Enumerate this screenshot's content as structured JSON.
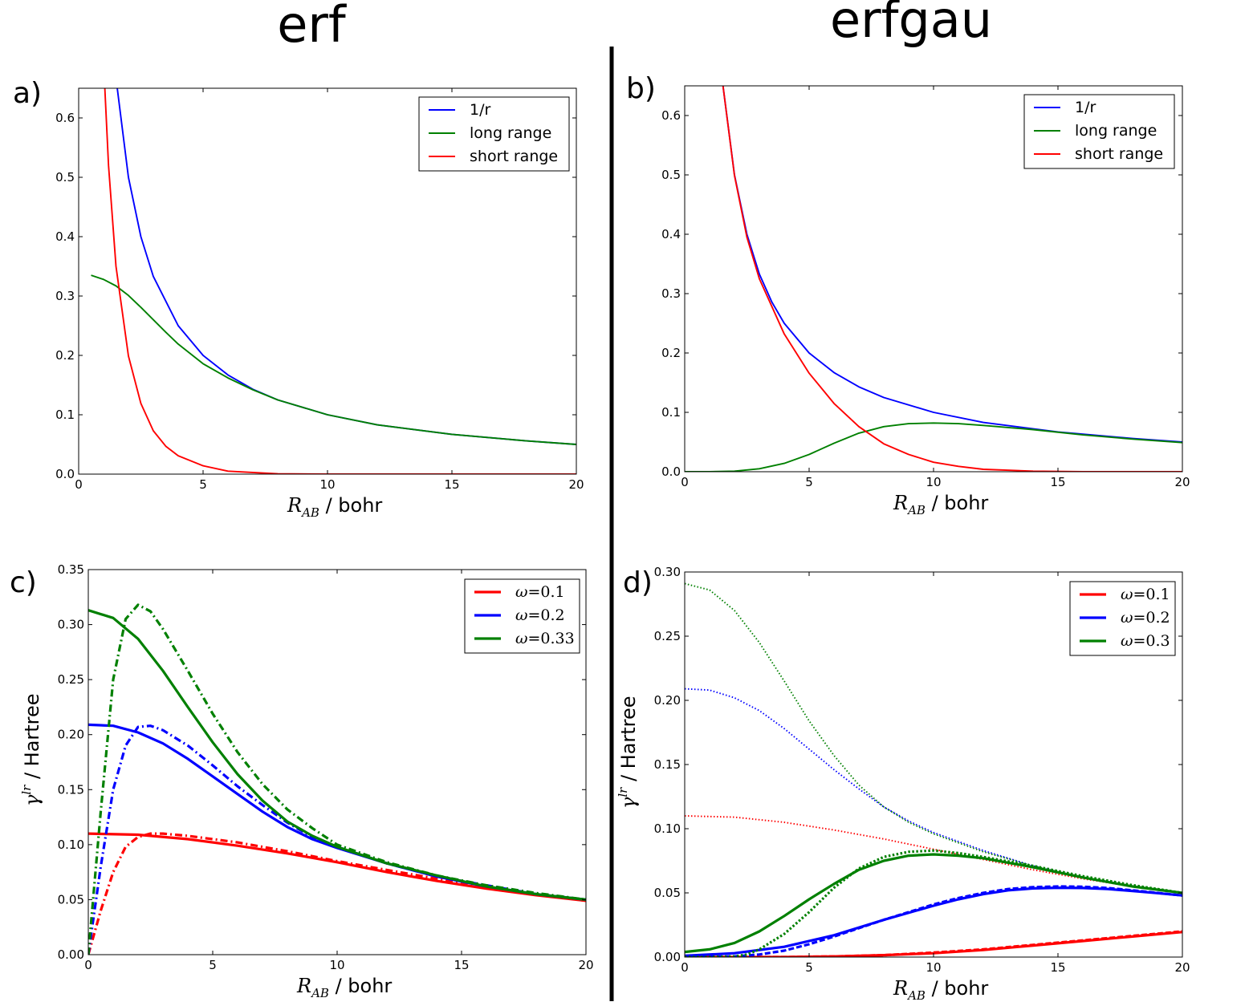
{
  "column_titles": {
    "left": "erf",
    "right": "erfgau"
  },
  "chart_data": [
    {
      "id": "a",
      "panel_label": "a)",
      "type": "line",
      "xlabel": {
        "var": "R",
        "sub": "AB",
        "rest": " / bohr"
      },
      "ylabel": null,
      "xlim": [
        0,
        20
      ],
      "ylim": [
        0,
        0.65
      ],
      "xticks": [
        0,
        5,
        10,
        15,
        20
      ],
      "yticks": [
        0.0,
        0.1,
        0.2,
        0.3,
        0.4,
        0.5,
        0.6
      ],
      "legend": {
        "position": "top-right",
        "style": "text"
      },
      "series": [
        {
          "name": "1/r",
          "color": "#0000ff",
          "dash": "solid",
          "width": "thin",
          "x": [
            1.5,
            2,
            2.5,
            3,
            4,
            5,
            6,
            7,
            8,
            10,
            12,
            15,
            18,
            20
          ],
          "y": [
            0.667,
            0.5,
            0.4,
            0.333,
            0.25,
            0.2,
            0.167,
            0.143,
            0.125,
            0.1,
            0.083,
            0.067,
            0.056,
            0.05
          ]
        },
        {
          "name": "long range",
          "color": "#008000",
          "dash": "solid",
          "width": "thin",
          "x": [
            0.5,
            1,
            1.5,
            2,
            2.5,
            3,
            3.5,
            4,
            5,
            6,
            7,
            8,
            10,
            12,
            15,
            18,
            20
          ],
          "y": [
            0.335,
            0.328,
            0.317,
            0.301,
            0.281,
            0.26,
            0.239,
            0.219,
            0.186,
            0.162,
            0.142,
            0.125,
            0.1,
            0.083,
            0.067,
            0.056,
            0.05
          ]
        },
        {
          "name": "short range",
          "color": "#ff0000",
          "dash": "solid",
          "width": "thin",
          "x": [
            1.05,
            1.2,
            1.5,
            2,
            2.5,
            3,
            3.5,
            4,
            5,
            6,
            8,
            10,
            15,
            20
          ],
          "y": [
            0.65,
            0.52,
            0.35,
            0.199,
            0.119,
            0.073,
            0.047,
            0.031,
            0.014,
            0.005,
            0.0005,
            0.0,
            0.0,
            0.0
          ]
        }
      ]
    },
    {
      "id": "b",
      "panel_label": "b)",
      "type": "line",
      "xlabel": {
        "var": "R",
        "sub": "AB",
        "rest": " / bohr"
      },
      "ylabel": null,
      "xlim": [
        0,
        20
      ],
      "ylim": [
        0,
        0.65
      ],
      "xticks": [
        0,
        5,
        10,
        15,
        20
      ],
      "yticks": [
        0.0,
        0.1,
        0.2,
        0.3,
        0.4,
        0.5,
        0.6
      ],
      "legend": {
        "position": "top-right",
        "style": "text"
      },
      "series": [
        {
          "name": "1/r",
          "color": "#0000ff",
          "dash": "solid",
          "width": "thin",
          "x": [
            1.54,
            2,
            2.5,
            3,
            3.5,
            4,
            5,
            6,
            7,
            8,
            10,
            12,
            15,
            18,
            20
          ],
          "y": [
            0.65,
            0.5,
            0.4,
            0.333,
            0.286,
            0.25,
            0.2,
            0.167,
            0.143,
            0.125,
            0.1,
            0.083,
            0.067,
            0.056,
            0.05
          ]
        },
        {
          "name": "long range",
          "color": "#008000",
          "dash": "solid",
          "width": "thin",
          "x": [
            0,
            1,
            2,
            3,
            4,
            5,
            6,
            7,
            8,
            9,
            10,
            11,
            12,
            14,
            16,
            18,
            20
          ],
          "y": [
            0.0,
            0.0,
            0.001,
            0.005,
            0.014,
            0.029,
            0.048,
            0.065,
            0.076,
            0.081,
            0.082,
            0.081,
            0.078,
            0.071,
            0.062,
            0.055,
            0.049
          ]
        },
        {
          "name": "short range",
          "color": "#ff0000",
          "dash": "solid",
          "width": "thin",
          "x": [
            1.54,
            2,
            2.5,
            3,
            4,
            5,
            6,
            7,
            8,
            9,
            10,
            11,
            12,
            14,
            16,
            18,
            20
          ],
          "y": [
            0.65,
            0.499,
            0.395,
            0.325,
            0.232,
            0.166,
            0.115,
            0.076,
            0.047,
            0.029,
            0.016,
            0.009,
            0.004,
            0.001,
            0.0,
            0.0,
            0.0
          ]
        }
      ]
    },
    {
      "id": "c",
      "panel_label": "c)",
      "type": "line",
      "xlabel": {
        "var": "R",
        "sub": "AB",
        "rest": " / bohr"
      },
      "ylabel": {
        "var": "γ",
        "sup": "lr",
        "rest": " / Hartree"
      },
      "xlim": [
        0,
        20
      ],
      "ylim": [
        0,
        0.35
      ],
      "xticks": [
        0,
        5,
        10,
        15,
        20
      ],
      "yticks": [
        0.0,
        0.05,
        0.1,
        0.15,
        0.2,
        0.25,
        0.3,
        0.35
      ],
      "legend": {
        "position": "top-right",
        "style": "omega"
      },
      "series": [
        {
          "name": "ω=0.1",
          "legend": {
            "sym": "ω",
            "val": "=0.1"
          },
          "color": "#ff0000",
          "dash": "solid",
          "width": "thick",
          "x": [
            0,
            2,
            4,
            6,
            8,
            10,
            12,
            14,
            16,
            18,
            20
          ],
          "y": [
            0.11,
            0.109,
            0.105,
            0.099,
            0.092,
            0.084,
            0.075,
            0.067,
            0.06,
            0.054,
            0.049
          ]
        },
        {
          "name": null,
          "color": "#ff0000",
          "dash": "dashdot",
          "width": "thick",
          "x": [
            0,
            0.5,
            1,
            1.5,
            2,
            2.5,
            3,
            4,
            6,
            8,
            10,
            12,
            14,
            16,
            18,
            20
          ],
          "y": [
            0.0,
            0.04,
            0.075,
            0.098,
            0.107,
            0.11,
            0.11,
            0.108,
            0.102,
            0.094,
            0.085,
            0.077,
            0.069,
            0.061,
            0.055,
            0.049
          ]
        },
        {
          "name": "ω=0.2",
          "legend": {
            "sym": "ω",
            "val": "=0.2"
          },
          "color": "#0000ff",
          "dash": "solid",
          "width": "thick",
          "x": [
            0,
            1,
            2,
            3,
            4,
            5,
            6,
            7,
            8,
            9,
            10,
            12,
            14,
            16,
            18,
            20
          ],
          "y": [
            0.209,
            0.208,
            0.202,
            0.192,
            0.178,
            0.162,
            0.146,
            0.13,
            0.116,
            0.105,
            0.097,
            0.083,
            0.071,
            0.062,
            0.055,
            0.05
          ]
        },
        {
          "name": null,
          "color": "#0000ff",
          "dash": "dashdot",
          "width": "thick",
          "x": [
            0,
            0.5,
            1,
            1.5,
            2,
            2.5,
            3,
            4,
            5,
            6,
            7,
            8,
            9,
            10,
            12,
            14,
            16,
            18,
            20
          ],
          "y": [
            0.0,
            0.08,
            0.15,
            0.19,
            0.207,
            0.208,
            0.204,
            0.19,
            0.172,
            0.153,
            0.136,
            0.12,
            0.107,
            0.098,
            0.083,
            0.071,
            0.063,
            0.055,
            0.05
          ]
        },
        {
          "name": "ω=0.33",
          "legend": {
            "sym": "ω",
            "val": "=0.33"
          },
          "color": "#008000",
          "dash": "solid",
          "width": "thick",
          "x": [
            0,
            1,
            2,
            3,
            4,
            5,
            6,
            7,
            8,
            9,
            10,
            12,
            14,
            16,
            18,
            20
          ],
          "y": [
            0.313,
            0.306,
            0.287,
            0.258,
            0.225,
            0.193,
            0.164,
            0.14,
            0.121,
            0.108,
            0.098,
            0.083,
            0.072,
            0.062,
            0.055,
            0.05
          ]
        },
        {
          "name": null,
          "color": "#008000",
          "dash": "dashdot",
          "width": "thick",
          "x": [
            0,
            0.5,
            1,
            1.5,
            2,
            2.5,
            3,
            4,
            5,
            6,
            7,
            8,
            9,
            10,
            12,
            14,
            16,
            18,
            20
          ],
          "y": [
            0.0,
            0.13,
            0.25,
            0.305,
            0.318,
            0.312,
            0.296,
            0.258,
            0.219,
            0.184,
            0.155,
            0.132,
            0.115,
            0.1,
            0.084,
            0.072,
            0.063,
            0.056,
            0.05
          ]
        }
      ]
    },
    {
      "id": "d",
      "panel_label": "d)",
      "type": "line",
      "xlabel": {
        "var": "R",
        "sub": "AB",
        "rest": " / bohr"
      },
      "ylabel": {
        "var": "γ",
        "sup": "lr",
        "rest": " / Hartree"
      },
      "xlim": [
        0,
        20
      ],
      "ylim": [
        0,
        0.3
      ],
      "xticks": [
        0,
        5,
        10,
        15,
        20
      ],
      "yticks": [
        0.0,
        0.05,
        0.1,
        0.15,
        0.2,
        0.25,
        0.3
      ],
      "legend": {
        "position": "top-right",
        "style": "omega"
      },
      "series": [
        {
          "name": null,
          "color": "#ff0000",
          "dash": "dotted",
          "width": "thin",
          "x": [
            0,
            2,
            4,
            6,
            8,
            10,
            12,
            14,
            16,
            18,
            20
          ],
          "y": [
            0.11,
            0.109,
            0.105,
            0.099,
            0.092,
            0.084,
            0.076,
            0.068,
            0.061,
            0.055,
            0.05
          ]
        },
        {
          "name": null,
          "color": "#0000ff",
          "dash": "dotted",
          "width": "thin",
          "x": [
            0,
            1,
            2,
            3,
            4,
            5,
            6,
            7,
            8,
            9,
            10,
            12,
            14,
            16,
            18,
            20
          ],
          "y": [
            0.209,
            0.208,
            0.202,
            0.192,
            0.178,
            0.162,
            0.146,
            0.131,
            0.117,
            0.106,
            0.097,
            0.083,
            0.071,
            0.062,
            0.055,
            0.05
          ]
        },
        {
          "name": null,
          "color": "#008000",
          "dash": "dotted",
          "width": "thin",
          "x": [
            0,
            1,
            2,
            3,
            4,
            5,
            6,
            7,
            8,
            9,
            10,
            12,
            14,
            16,
            18,
            20
          ],
          "y": [
            0.291,
            0.286,
            0.27,
            0.245,
            0.215,
            0.184,
            0.157,
            0.134,
            0.117,
            0.105,
            0.096,
            0.082,
            0.071,
            0.062,
            0.055,
            0.05
          ]
        },
        {
          "name": "ω=0.1",
          "legend": {
            "sym": "ω",
            "val": "=0.1"
          },
          "color": "#ff0000",
          "dash": "solid",
          "width": "thick",
          "x": [
            0,
            2,
            4,
            6,
            8,
            10,
            12,
            14,
            16,
            18,
            20
          ],
          "y": [
            0.0,
            0.0,
            0.0,
            0.0005,
            0.0015,
            0.003,
            0.0055,
            0.009,
            0.0125,
            0.016,
            0.0195
          ]
        },
        {
          "name": null,
          "color": "#ff0000",
          "dash": "dashed",
          "width": "thick",
          "x": [
            0,
            2,
            4,
            6,
            8,
            10,
            12,
            14,
            16,
            18,
            20
          ],
          "y": [
            0.0,
            0.0,
            0.0,
            0.0005,
            0.0015,
            0.0035,
            0.006,
            0.0095,
            0.013,
            0.0165,
            0.02
          ]
        },
        {
          "name": "ω=0.2",
          "legend": {
            "sym": "ω",
            "val": "=0.2"
          },
          "color": "#0000ff",
          "dash": "solid",
          "width": "thick",
          "x": [
            0,
            2,
            4,
            6,
            8,
            10,
            11,
            12,
            13,
            14,
            15,
            16,
            17,
            18,
            19,
            20
          ],
          "y": [
            0.001,
            0.003,
            0.008,
            0.017,
            0.029,
            0.04,
            0.045,
            0.049,
            0.052,
            0.0535,
            0.054,
            0.0538,
            0.053,
            0.0515,
            0.0498,
            0.048
          ]
        },
        {
          "name": null,
          "color": "#0000ff",
          "dash": "dashed",
          "width": "thick",
          "x": [
            0,
            2,
            3,
            4,
            5,
            6,
            8,
            10,
            11,
            12,
            13,
            14,
            15,
            16,
            17,
            18,
            19,
            20
          ],
          "y": [
            0.0,
            0.0005,
            0.002,
            0.005,
            0.01,
            0.016,
            0.029,
            0.041,
            0.046,
            0.05,
            0.053,
            0.0545,
            0.055,
            0.0548,
            0.0538,
            0.052,
            0.05,
            0.048
          ]
        },
        {
          "name": "ω=0.3",
          "legend": {
            "sym": "ω",
            "val": "=0.3"
          },
          "color": "#008000",
          "dash": "solid",
          "width": "thick",
          "x": [
            0,
            1,
            2,
            3,
            4,
            5,
            6,
            7,
            8,
            9,
            10,
            11,
            12,
            14,
            16,
            18,
            20
          ],
          "y": [
            0.004,
            0.006,
            0.011,
            0.02,
            0.032,
            0.045,
            0.057,
            0.068,
            0.075,
            0.079,
            0.08,
            0.079,
            0.077,
            0.07,
            0.062,
            0.055,
            0.05
          ]
        },
        {
          "name": null,
          "color": "#008000",
          "dash": "dotted",
          "width": "thick",
          "x": [
            0,
            1,
            2,
            2.5,
            3,
            4,
            5,
            6,
            7,
            8,
            9,
            10,
            11,
            12,
            14,
            16,
            18,
            20
          ],
          "y": [
            0.0,
            0.0,
            0.0005,
            0.002,
            0.006,
            0.018,
            0.035,
            0.054,
            0.069,
            0.078,
            0.082,
            0.083,
            0.081,
            0.078,
            0.071,
            0.063,
            0.056,
            0.05
          ]
        }
      ]
    }
  ]
}
